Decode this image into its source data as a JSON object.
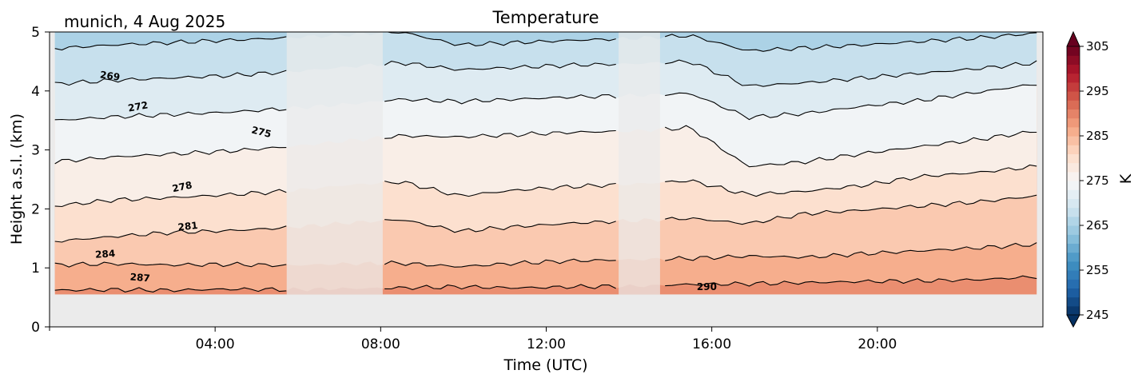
{
  "chart_data": {
    "type": "heatmap",
    "title": "Temperature",
    "subtitle": "munich, 4 Aug 2025",
    "xlabel": "Time (UTC)",
    "ylabel": "Height a.s.l. (km)",
    "x_unit": "hours (UTC)",
    "xlim": [
      0,
      24
    ],
    "ylim": [
      0,
      5
    ],
    "x_ticks": [
      {
        "value": 4,
        "label": "04:00"
      },
      {
        "value": 8,
        "label": "08:00"
      },
      {
        "value": 12,
        "label": "12:00"
      },
      {
        "value": 16,
        "label": "16:00"
      },
      {
        "value": 20,
        "label": "20:00"
      }
    ],
    "y_ticks": [
      {
        "value": 0,
        "label": "0"
      },
      {
        "value": 1,
        "label": "1"
      },
      {
        "value": 2,
        "label": "2"
      },
      {
        "value": 3,
        "label": "3"
      },
      {
        "value": 4,
        "label": "4"
      },
      {
        "value": 5,
        "label": "5"
      }
    ],
    "colorbar": {
      "label": "K",
      "range": [
        245,
        305
      ],
      "step": 2,
      "extend": "both",
      "colormap": "RdBu_r",
      "ticks": [
        {
          "value": 305,
          "label": "305"
        },
        {
          "value": 295,
          "label": "295"
        },
        {
          "value": 285,
          "label": "285"
        },
        {
          "value": 275,
          "label": "275"
        },
        {
          "value": 265,
          "label": "265"
        },
        {
          "value": 255,
          "label": "255"
        },
        {
          "value": 245,
          "label": "245"
        }
      ]
    },
    "data_bottom_km": 0.55,
    "data_start_hour": 0.13,
    "data_end_hour": 23.85,
    "shaded_gaps": [
      {
        "start": 5.73,
        "end": 8.05
      },
      {
        "start": 13.75,
        "end": 14.75
      }
    ],
    "contours": [
      {
        "level": 287,
        "heights": [
          0.62,
          0.63,
          0.62,
          0.64,
          0.63,
          0.65,
          0.66,
          0.68,
          0.66,
          0.68,
          0.69,
          0.72,
          0.73,
          0.75,
          0.77,
          0.78,
          0.8,
          0.85
        ]
      },
      {
        "level": 284,
        "heights": [
          1.05,
          1.07,
          1.05,
          1.06,
          1.04,
          1.07,
          1.08,
          1.02,
          1.08,
          1.12,
          1.14,
          1.16,
          1.2,
          1.18,
          1.24,
          1.29,
          1.34,
          1.4
        ]
      },
      {
        "level": 281,
        "heights": [
          1.45,
          1.53,
          1.6,
          1.63,
          1.68,
          1.76,
          1.82,
          1.62,
          1.7,
          1.76,
          1.8,
          1.84,
          1.75,
          1.92,
          1.98,
          2.05,
          2.12,
          2.22
        ]
      },
      {
        "level": 278,
        "heights": [
          2.05,
          2.15,
          2.19,
          2.24,
          2.3,
          2.4,
          2.46,
          2.22,
          2.32,
          2.38,
          2.42,
          2.48,
          2.24,
          2.3,
          2.4,
          2.55,
          2.62,
          2.72
        ]
      },
      {
        "level": 275,
        "heights": [
          2.8,
          2.88,
          2.93,
          2.98,
          3.05,
          3.15,
          3.24,
          3.22,
          3.26,
          3.3,
          3.32,
          3.38,
          2.72,
          2.8,
          2.94,
          3.06,
          3.18,
          3.32
        ]
      },
      {
        "level": 272,
        "heights": [
          3.5,
          3.56,
          3.6,
          3.64,
          3.7,
          3.77,
          3.86,
          3.82,
          3.86,
          3.9,
          3.92,
          3.96,
          3.55,
          3.62,
          3.74,
          3.84,
          3.98,
          4.12
        ]
      },
      {
        "level": 269,
        "heights": [
          4.12,
          4.18,
          4.22,
          4.26,
          4.32,
          4.4,
          4.48,
          4.36,
          4.4,
          4.44,
          4.46,
          4.5,
          4.08,
          4.14,
          4.22,
          4.3,
          4.38,
          4.48
        ]
      },
      {
        "level": 266,
        "heights": [
          4.72,
          4.78,
          4.82,
          4.86,
          4.9,
          4.95,
          5.0,
          4.78,
          4.82,
          4.86,
          4.89,
          4.94,
          4.68,
          4.73,
          4.78,
          4.84,
          4.9,
          4.98
        ]
      }
    ],
    "contour_labels": [
      {
        "text": "269",
        "x": 1.45,
        "y": 4.2,
        "angle": 8
      },
      {
        "text": "272",
        "x": 2.15,
        "y": 3.68,
        "angle": -10
      },
      {
        "text": "275",
        "x": 5.1,
        "y": 3.25,
        "angle": 14
      },
      {
        "text": "278",
        "x": 3.22,
        "y": 2.32,
        "angle": -12
      },
      {
        "text": "281",
        "x": 3.35,
        "y": 1.65,
        "angle": -6
      },
      {
        "text": "284",
        "x": 1.35,
        "y": 1.18,
        "angle": -4
      },
      {
        "text": "287",
        "x": 2.18,
        "y": 0.78,
        "angle": 5
      },
      {
        "text": "290",
        "x": 15.88,
        "y": 0.62,
        "angle": 0
      }
    ]
  }
}
